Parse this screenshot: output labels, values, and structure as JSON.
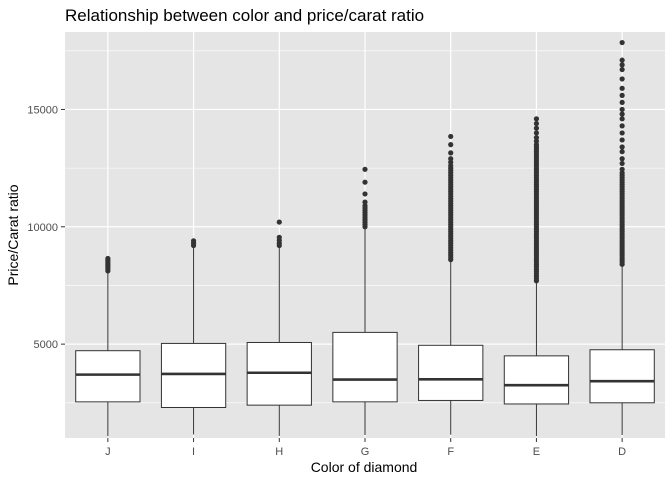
{
  "chart_data": {
    "type": "boxplot",
    "title": "Relationship between color and price/carat ratio",
    "xlabel": "Color of diamond",
    "ylabel": "Price/Carat ratio",
    "categories": [
      "J",
      "I",
      "H",
      "G",
      "F",
      "E",
      "D"
    ],
    "y_ticks": [
      5000,
      10000,
      15000
    ],
    "y_tick_labels": [
      "5000",
      "10000",
      "15000"
    ],
    "ylim": [
      1000,
      18300
    ],
    "grid": true,
    "panel_background": "#e5e5e5",
    "grid_color": "#ffffff",
    "box_fill": "#ffffff",
    "box_stroke": "#333333",
    "outlier_color": "#333333",
    "boxes": [
      {
        "category": "J",
        "min": 1080,
        "q1": 2540,
        "median": 3700,
        "q3": 4720,
        "upper_whisker": 8050,
        "outliers": [
          8120,
          8200,
          8280,
          8350,
          8420,
          8500,
          8580,
          8650
        ]
      },
      {
        "category": "I",
        "min": 1150,
        "q1": 2300,
        "median": 3730,
        "q3": 5030,
        "upper_whisker": 9100,
        "outliers": [
          9200,
          9300,
          9400
        ]
      },
      {
        "category": "H",
        "min": 1090,
        "q1": 2400,
        "median": 3780,
        "q3": 5070,
        "upper_whisker": 9130,
        "outliers": [
          9200,
          9300,
          9420,
          9550,
          10200
        ]
      },
      {
        "category": "G",
        "min": 1130,
        "q1": 2540,
        "median": 3490,
        "q3": 5500,
        "upper_whisker": 9900,
        "outliers": [
          10000,
          10100,
          10200,
          10300,
          10400,
          10500,
          10600,
          10700,
          10800,
          10900,
          11050,
          11400,
          11900,
          12450
        ]
      },
      {
        "category": "F",
        "min": 1140,
        "q1": 2600,
        "median": 3500,
        "q3": 4950,
        "upper_whisker": 8500,
        "outliers": [
          8600,
          8700,
          8800,
          8900,
          9000,
          9100,
          9200,
          9300,
          9400,
          9500,
          9600,
          9700,
          9800,
          9900,
          10000,
          10100,
          10200,
          10300,
          10400,
          10500,
          10600,
          10700,
          10800,
          10900,
          11000,
          11100,
          11200,
          11300,
          11400,
          11500,
          11600,
          11700,
          11800,
          11900,
          12000,
          12100,
          12200,
          12300,
          12400,
          12500,
          12600,
          12750,
          12900,
          13150,
          13500,
          13850
        ]
      },
      {
        "category": "E",
        "min": 1080,
        "q1": 2450,
        "median": 3250,
        "q3": 4500,
        "upper_whisker": 7600,
        "outliers": [
          7700,
          7800,
          7900,
          8000,
          8100,
          8200,
          8300,
          8400,
          8500,
          8600,
          8700,
          8800,
          8900,
          9000,
          9100,
          9200,
          9300,
          9400,
          9500,
          9600,
          9700,
          9800,
          9900,
          10000,
          10100,
          10200,
          10300,
          10400,
          10500,
          10600,
          10700,
          10800,
          10900,
          11000,
          11100,
          11200,
          11300,
          11400,
          11500,
          11600,
          11700,
          11800,
          11900,
          12000,
          12100,
          12200,
          12300,
          12400,
          12500,
          12600,
          12700,
          12800,
          12900,
          13000,
          13100,
          13200,
          13300,
          13400,
          13500,
          13650,
          13800,
          14000,
          14200,
          14400,
          14600
        ]
      },
      {
        "category": "D",
        "min": 1130,
        "q1": 2500,
        "median": 3420,
        "q3": 4760,
        "upper_whisker": 8300,
        "outliers": [
          8400,
          8500,
          8600,
          8700,
          8800,
          8900,
          9000,
          9100,
          9200,
          9300,
          9400,
          9500,
          9600,
          9700,
          9800,
          9900,
          10000,
          10100,
          10200,
          10300,
          10400,
          10500,
          10600,
          10700,
          10800,
          10900,
          11000,
          11100,
          11200,
          11300,
          11400,
          11500,
          11600,
          11700,
          11800,
          11900,
          12000,
          12100,
          12200,
          12300,
          12450,
          12700,
          12900,
          13200,
          13400,
          13700,
          14000,
          14300,
          14600,
          14800,
          15000,
          15300,
          15600,
          15900,
          16300,
          16700,
          16900,
          17100,
          17850
        ]
      }
    ]
  }
}
